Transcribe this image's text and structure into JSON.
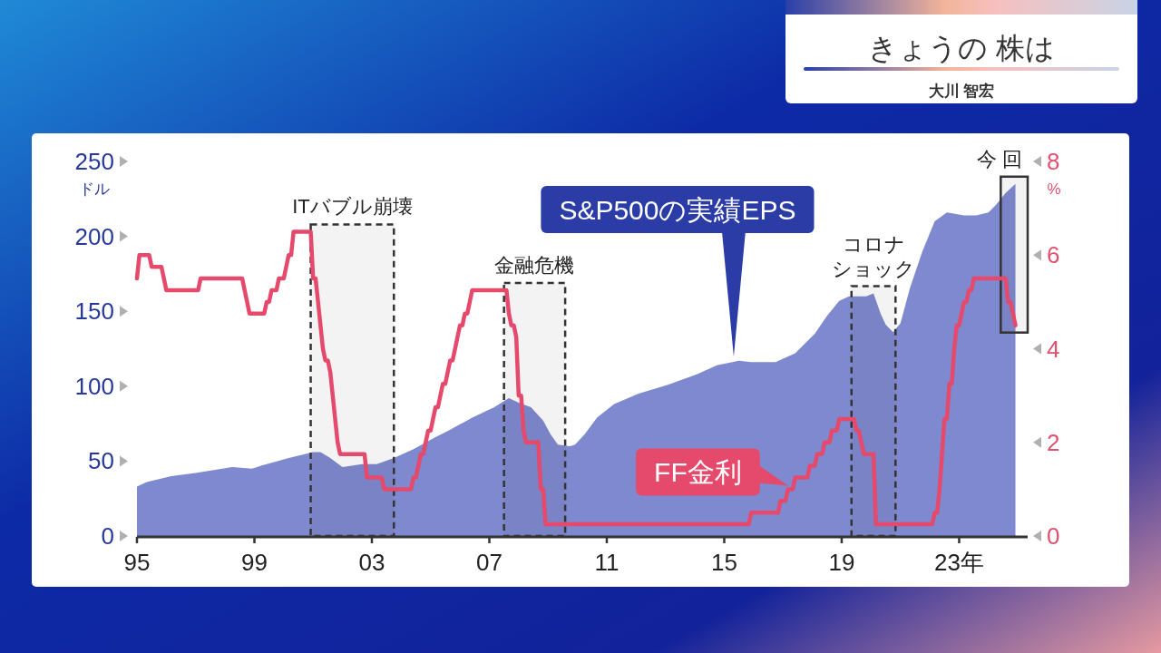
{
  "chart_data": {
    "type": "area",
    "title": "きょうの 株は",
    "subtitle": "大川 智宏",
    "ylabel": "ドル",
    "y2label": "%",
    "xlim": [
      "1995-01",
      "2025-05"
    ],
    "xticks": [
      {
        "value": "1995",
        "label": "95"
      },
      {
        "value": "1999",
        "label": "99"
      },
      {
        "value": "2003",
        "label": "03"
      },
      {
        "value": "2007",
        "label": "07"
      },
      {
        "value": "2011",
        "label": "11"
      },
      {
        "value": "2015",
        "label": "15"
      },
      {
        "value": "2019",
        "label": "19"
      },
      {
        "value": "2023",
        "label": "23年"
      }
    ],
    "ylim": [
      0,
      250
    ],
    "yticks": [
      0,
      50,
      100,
      150,
      200,
      250
    ],
    "y2lim": [
      0,
      8
    ],
    "y2ticks": [
      0,
      2,
      4,
      6,
      8
    ],
    "series": [
      {
        "name": "S&P500の実績EPS",
        "color": "#7e89cf",
        "x": [
          "1995-01",
          "1995-05",
          "1996-03",
          "1997-01",
          "1998-04",
          "1998-12",
          "1999-04",
          "2000-03",
          "2001-01",
          "2001-04",
          "2001-08",
          "2002-01",
          "2002-09",
          "2003-03",
          "2003-10",
          "2004-06",
          "2005-03",
          "2005-08",
          "2006-06",
          "2007-03",
          "2007-09",
          "2008-01",
          "2008-06",
          "2008-11",
          "2009-02",
          "2009-05",
          "2009-10",
          "2009-12",
          "2010-04",
          "2010-09",
          "2011-04",
          "2012-02",
          "2013-02",
          "2014-02",
          "2014-10",
          "2015-07",
          "2015-12",
          "2016-10",
          "2017-06",
          "2018-02",
          "2018-07",
          "2018-12",
          "2019-04",
          "2019-11",
          "2020-02",
          "2020-05",
          "2020-07",
          "2020-10",
          "2021-01",
          "2021-05",
          "2021-10",
          "2022-03",
          "2022-08",
          "2023-03",
          "2023-08",
          "2024-01",
          "2024-04",
          "2024-08",
          "2024-12"
        ],
        "values": [
          33,
          36,
          40,
          42,
          46,
          45,
          47,
          52,
          56,
          56,
          52,
          46,
          48,
          48,
          52,
          58,
          66,
          70,
          79,
          86,
          92,
          89,
          86,
          77,
          68,
          61,
          60,
          61,
          68,
          79,
          88,
          95,
          101,
          108,
          114,
          117,
          116,
          116,
          122,
          135,
          147,
          157,
          160,
          160,
          162,
          148,
          141,
          136,
          142,
          166,
          190,
          210,
          216,
          214,
          214,
          216,
          221,
          229,
          235
        ]
      },
      {
        "name": "FF金利",
        "type": "line",
        "axis": "y2",
        "color": "#e5496b",
        "x": [
          "1995-01",
          "1995-02",
          "1995-06",
          "1995-07",
          "1995-11",
          "1995-12",
          "1996-01",
          "1997-02",
          "1997-03",
          "1998-08",
          "1998-09",
          "1998-10",
          "1998-11",
          "1999-05",
          "1999-06",
          "1999-07",
          "1999-08",
          "1999-10",
          "1999-11",
          "2000-01",
          "2000-02",
          "2000-03",
          "2000-04",
          "2000-05",
          "2000-12",
          "2001-01",
          "2001-02",
          "2001-03",
          "2001-04",
          "2001-05",
          "2001-06",
          "2001-07",
          "2001-08",
          "2001-09",
          "2001-10",
          "2001-11",
          "2001-12",
          "2002-10",
          "2002-11",
          "2003-05",
          "2003-06",
          "2004-05",
          "2004-06",
          "2004-07",
          "2004-08",
          "2004-09",
          "2004-10",
          "2004-11",
          "2004-12",
          "2005-01",
          "2005-02",
          "2005-03",
          "2005-04",
          "2005-05",
          "2005-06",
          "2005-07",
          "2005-08",
          "2005-09",
          "2005-10",
          "2005-11",
          "2005-12",
          "2006-01",
          "2006-02",
          "2006-03",
          "2006-04",
          "2006-05",
          "2006-06",
          "2007-08",
          "2007-09",
          "2007-10",
          "2007-11",
          "2007-12",
          "2008-01",
          "2008-02",
          "2008-03",
          "2008-04",
          "2008-09",
          "2008-10",
          "2008-11",
          "2008-12",
          "2015-11",
          "2015-12",
          "2016-11",
          "2016-12",
          "2017-02",
          "2017-03",
          "2017-05",
          "2017-06",
          "2017-11",
          "2017-12",
          "2018-02",
          "2018-03",
          "2018-05",
          "2018-06",
          "2018-08",
          "2018-09",
          "2018-11",
          "2018-12",
          "2019-06",
          "2019-07",
          "2019-08",
          "2019-09",
          "2019-10",
          "2020-02",
          "2020-03",
          "2022-02",
          "2022-03",
          "2022-04",
          "2022-05",
          "2022-06",
          "2022-07",
          "2022-08",
          "2022-09",
          "2022-10",
          "2022-11",
          "2022-12",
          "2023-01",
          "2023-02",
          "2023-03",
          "2023-04",
          "2023-05",
          "2023-06",
          "2023-07",
          "2024-08",
          "2024-09",
          "2024-10",
          "2024-11",
          "2024-12"
        ],
        "values": [
          5.5,
          6,
          6,
          5.75,
          5.75,
          5.5,
          5.25,
          5.25,
          5.5,
          5.5,
          5.25,
          5,
          4.75,
          4.75,
          5,
          5,
          5.25,
          5.25,
          5.5,
          5.5,
          5.75,
          6,
          6,
          6.5,
          6.5,
          5.5,
          5.5,
          5,
          4.5,
          4,
          3.75,
          3.75,
          3.5,
          3,
          2.5,
          2,
          1.75,
          1.75,
          1.25,
          1.25,
          1,
          1,
          1.25,
          1.25,
          1.5,
          1.75,
          1.75,
          2,
          2.25,
          2.25,
          2.5,
          2.75,
          2.75,
          3,
          3.25,
          3.25,
          3.5,
          3.75,
          3.75,
          4,
          4.25,
          4.5,
          4.5,
          4.75,
          4.75,
          5,
          5.25,
          5.25,
          4.75,
          4.5,
          4.5,
          4.25,
          3,
          3,
          2.25,
          2,
          2,
          1,
          1,
          0.25,
          0.25,
          0.5,
          0.5,
          0.75,
          0.75,
          1,
          1,
          1.25,
          1.25,
          1.5,
          1.5,
          1.75,
          1.75,
          2,
          2,
          2.25,
          2.25,
          2.5,
          2.5,
          2.25,
          2.25,
          2,
          1.75,
          1.75,
          0.25,
          0.25,
          0.5,
          0.5,
          1,
          1.75,
          2.5,
          2.5,
          3.25,
          3.25,
          4,
          4.5,
          4.5,
          4.75,
          5,
          5,
          5.25,
          5.25,
          5.5,
          5.5,
          5,
          5,
          4.75,
          4.5
        ]
      }
    ],
    "bands": [
      {
        "axis": "x",
        "from": "2000-12",
        "to": "2003-10",
        "label": "ITバブル崩壊",
        "color": "#333333"
      },
      {
        "axis": "x",
        "from": "2007-07",
        "to": "2009-08",
        "label": "金融危機",
        "color": "#333333"
      },
      {
        "axis": "x",
        "from": "2019-05",
        "to": "2020-11",
        "label": "コロナショック",
        "color": "#333333"
      },
      {
        "axis": "x",
        "from": "2024-06",
        "to": "2025-05",
        "label": "今 回",
        "color": "#333333"
      }
    ]
  }
}
